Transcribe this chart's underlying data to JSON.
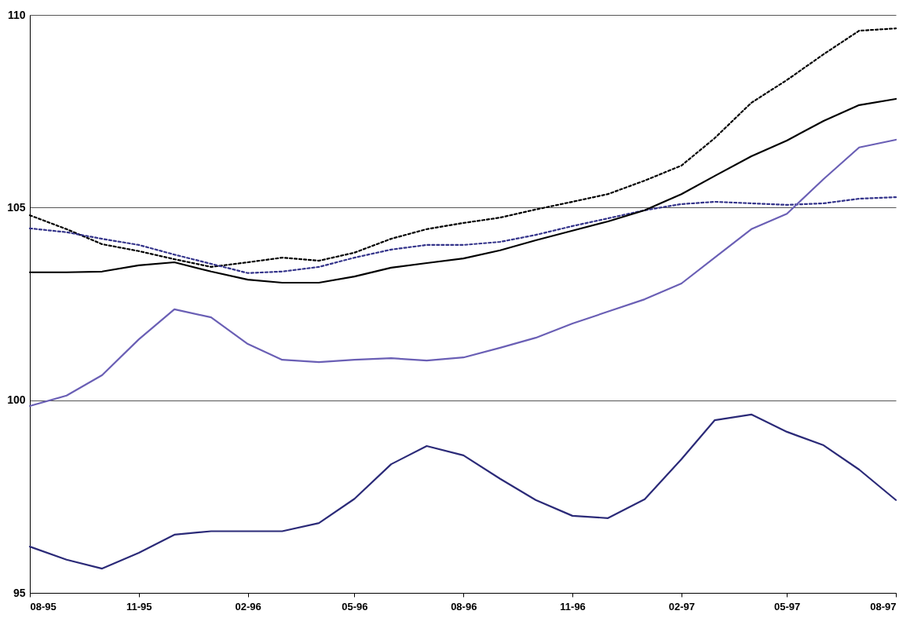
{
  "chart_data": {
    "type": "line",
    "x": [
      "1995-08",
      "1995-09",
      "1995-10",
      "1995-11",
      "1995-12",
      "1996-01",
      "1996-02",
      "1996-03",
      "1996-04",
      "1996-05",
      "1996-06",
      "1996-07",
      "1996-08",
      "1996-09",
      "1996-10",
      "1996-11",
      "1996-12",
      "1997-01",
      "1997-02",
      "1997-03",
      "1997-04",
      "1997-05",
      "1997-06",
      "1997-07",
      "1997-08"
    ],
    "series": [
      {
        "color": "#000000",
        "line_style": "dotted",
        "values": [
          104.8,
          104.44,
          104.05,
          103.87,
          103.66,
          103.46,
          103.58,
          103.7,
          103.62,
          103.83,
          104.19,
          104.44,
          104.6,
          104.74,
          104.95,
          105.15,
          105.35,
          105.7,
          106.09,
          106.8,
          107.72,
          108.31,
          108.98,
          109.59,
          109.65
        ]
      },
      {
        "color": "#33338a",
        "line_style": "dotted",
        "values": [
          104.46,
          104.36,
          104.19,
          104.03,
          103.78,
          103.54,
          103.3,
          103.34,
          103.46,
          103.7,
          103.91,
          104.03,
          104.03,
          104.11,
          104.29,
          104.52,
          104.72,
          104.93,
          105.09,
          105.15,
          105.11,
          105.07,
          105.11,
          105.23,
          105.27
        ]
      },
      {
        "color": "#000000",
        "line_style": "solid",
        "values": [
          103.32,
          103.32,
          103.34,
          103.5,
          103.58,
          103.34,
          103.13,
          103.05,
          103.05,
          103.21,
          103.44,
          103.56,
          103.68,
          103.89,
          104.15,
          104.4,
          104.64,
          104.93,
          105.35,
          105.82,
          106.33,
          106.74,
          107.25,
          107.66,
          107.82
        ]
      },
      {
        "color": "#6a5fb5",
        "line_style": "solid",
        "values": [
          99.85,
          100.12,
          100.65,
          101.58,
          102.36,
          102.15,
          101.46,
          101.05,
          100.99,
          101.05,
          101.09,
          101.03,
          101.11,
          101.36,
          101.62,
          101.99,
          102.3,
          102.62,
          103.03,
          103.7,
          104.44,
          104.84,
          105.74,
          106.56,
          106.76
        ]
      },
      {
        "color": "#2b2a78",
        "line_style": "solid",
        "values": [
          96.2,
          95.86,
          95.63,
          96.04,
          96.51,
          96.6,
          96.6,
          96.6,
          96.81,
          97.44,
          98.34,
          98.81,
          98.57,
          97.96,
          97.41,
          97.0,
          96.94,
          97.43,
          98.47,
          99.48,
          99.63,
          99.18,
          98.83,
          98.2,
          97.41
        ]
      }
    ],
    "xlim": [
      "1995-08",
      "1997-08"
    ],
    "xticks": [
      {
        "value": "1995-08",
        "label": "08-95"
      },
      {
        "value": "1995-11",
        "label": "11-95"
      },
      {
        "value": "1996-02",
        "label": "02-96"
      },
      {
        "value": "1996-05",
        "label": "05-96"
      },
      {
        "value": "1996-08",
        "label": "08-96"
      },
      {
        "value": "1996-11",
        "label": "11-96"
      },
      {
        "value": "1997-02",
        "label": "02-97"
      },
      {
        "value": "1997-05",
        "label": "05-97"
      },
      {
        "value": "1997-08",
        "label": "08-97"
      }
    ],
    "ylim": [
      95,
      110
    ],
    "yticks": [
      95,
      100,
      105,
      110
    ],
    "grid": "y"
  }
}
